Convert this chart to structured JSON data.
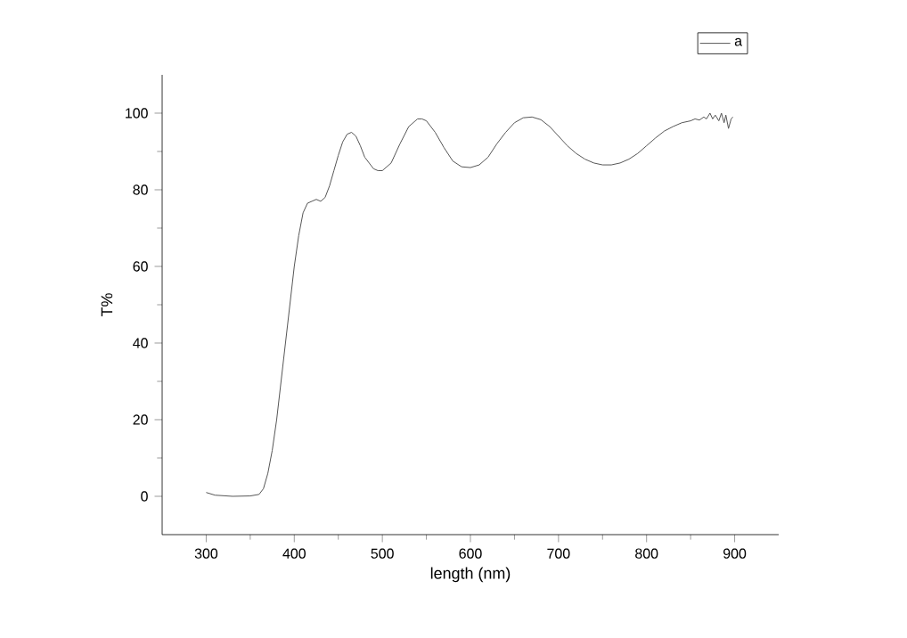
{
  "chart_data": {
    "type": "line",
    "xlabel": "length (nm)",
    "ylabel": "T%",
    "xlim": [
      250,
      950
    ],
    "ylim": [
      -10,
      110
    ],
    "xticks": [
      300,
      400,
      500,
      600,
      700,
      800,
      900
    ],
    "yticks": [
      0,
      20,
      40,
      60,
      80,
      100
    ],
    "legend": "top right",
    "grid": false,
    "series": [
      {
        "name": "a",
        "color": "#555555",
        "x": [
          300,
          310,
          330,
          350,
          360,
          365,
          370,
          375,
          380,
          385,
          390,
          395,
          400,
          405,
          410,
          415,
          420,
          425,
          430,
          435,
          440,
          445,
          450,
          455,
          460,
          465,
          470,
          475,
          480,
          490,
          495,
          500,
          510,
          520,
          530,
          540,
          545,
          550,
          560,
          570,
          580,
          590,
          600,
          610,
          620,
          630,
          640,
          650,
          660,
          670,
          680,
          690,
          700,
          710,
          720,
          730,
          740,
          750,
          760,
          770,
          780,
          790,
          800,
          810,
          820,
          830,
          840,
          850,
          855,
          860,
          865,
          868,
          872,
          875,
          878,
          882,
          885,
          888,
          890,
          893,
          896,
          898
        ],
        "values": [
          1,
          0.3,
          0,
          0.1,
          0.5,
          2,
          6,
          12,
          20,
          30,
          40,
          50,
          60,
          68,
          74,
          76.5,
          77,
          77.5,
          77,
          78,
          81,
          85,
          89,
          92.5,
          94.5,
          95,
          94,
          91.5,
          88.5,
          85.5,
          85,
          85,
          87,
          92,
          96.5,
          98.5,
          98.5,
          98,
          95,
          91,
          87.5,
          86,
          85.8,
          86.5,
          88.5,
          92,
          95,
          97.5,
          98.8,
          99,
          98.3,
          96.5,
          94,
          91.5,
          89.5,
          88,
          87,
          86.5,
          86.5,
          87,
          88,
          89.5,
          91.5,
          93.5,
          95.3,
          96.5,
          97.5,
          98,
          98.5,
          98.2,
          99,
          98.5,
          100,
          98.5,
          99.5,
          98,
          100,
          97.5,
          99.5,
          96,
          98.5,
          99
        ]
      }
    ]
  }
}
